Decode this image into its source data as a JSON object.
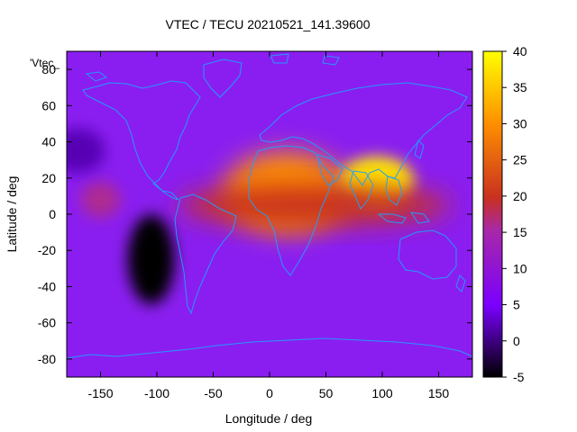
{
  "chart_data": {
    "type": "heatmap",
    "title": "VTEC / TECU 20210521_141.39600",
    "xlabel": "Longitude / deg",
    "ylabel": "Latitude / deg",
    "legend_label": "'Vtec_",
    "xlim": [
      -180,
      180
    ],
    "ylim": [
      -90,
      90
    ],
    "x_ticks": [
      -150,
      -100,
      -50,
      0,
      50,
      100,
      150
    ],
    "y_ticks": [
      -80,
      -60,
      -40,
      -20,
      0,
      20,
      40,
      60,
      80
    ],
    "colorbar": {
      "min": -5,
      "max": 40,
      "ticks": [
        -5,
        0,
        5,
        10,
        15,
        20,
        25,
        30,
        35,
        40
      ],
      "colormap": [
        "#000000",
        "#7a00ff",
        "#c83020",
        "#ff9000",
        "#ffff00"
      ]
    },
    "background_value": 8,
    "features": [
      {
        "name": "african-european-maximum",
        "lon": 15,
        "lat": 12,
        "value": 30
      },
      {
        "name": "south-asian-maximum",
        "lon": 95,
        "lat": 18,
        "value": 38
      },
      {
        "name": "equatorial-band",
        "lon": 40,
        "lat": 5,
        "value": 20
      },
      {
        "name": "pacific-minimum",
        "lon": -105,
        "lat": -25,
        "value": -5
      },
      {
        "name": "east-pacific-anomaly",
        "lon": -150,
        "lat": 8,
        "value": 16
      },
      {
        "name": "north-pacific-low",
        "lon": -170,
        "lat": 35,
        "value": 2
      }
    ]
  }
}
